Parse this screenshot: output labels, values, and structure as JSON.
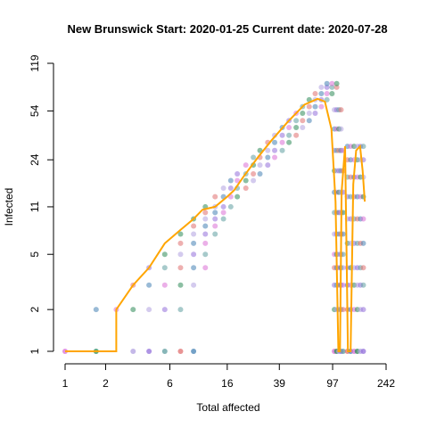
{
  "chart_data": {
    "type": "scatter",
    "title": "New Brunswick Start:  2020-01-25   Current date:  2020-07-28",
    "xlabel": "Total affected",
    "ylabel": "Infected",
    "x_scale": "log",
    "y_scale": "log",
    "xlim": [
      1,
      242
    ],
    "ylim": [
      1,
      119
    ],
    "x_ticks": [
      1,
      2,
      6,
      16,
      39,
      97,
      242
    ],
    "y_ticks": [
      1,
      2,
      5,
      11,
      24,
      54,
      119
    ],
    "grid": false,
    "colors": {
      "median_line": "#FFA500",
      "cloud": [
        "#4682B4",
        "#DA70D6",
        "#2E8B57",
        "#B0A0E0",
        "#9370DB",
        "#5F9EA0",
        "#E07070"
      ]
    },
    "median_line": [
      [
        1,
        1
      ],
      [
        1.7,
        1
      ],
      [
        2.4,
        1
      ],
      [
        2.4,
        2
      ],
      [
        3.2,
        3
      ],
      [
        4.2,
        4
      ],
      [
        5.5,
        6
      ],
      [
        7.2,
        7.5
      ],
      [
        9,
        9
      ],
      [
        10.5,
        10.5
      ],
      [
        13,
        11
      ],
      [
        16,
        13
      ],
      [
        18,
        14.5
      ],
      [
        21,
        18
      ],
      [
        27,
        25
      ],
      [
        34,
        33
      ],
      [
        45,
        45
      ],
      [
        60,
        60
      ],
      [
        75,
        66
      ],
      [
        85,
        63
      ],
      [
        95,
        40
      ],
      [
        102,
        12
      ],
      [
        107,
        1
      ],
      [
        110,
        1
      ],
      [
        113,
        14
      ],
      [
        120,
        30
      ],
      [
        126,
        1
      ],
      [
        132,
        1
      ],
      [
        138,
        16
      ],
      [
        145,
        28
      ],
      [
        155,
        30
      ],
      [
        162,
        20
      ],
      [
        168,
        12
      ]
    ],
    "simulation_cloud": [
      [
        1.7,
        2
      ],
      [
        2.4,
        2
      ],
      [
        3.2,
        2
      ],
      [
        4.2,
        2
      ],
      [
        5.5,
        2
      ],
      [
        7.2,
        2
      ],
      [
        3.2,
        3
      ],
      [
        4.2,
        3
      ],
      [
        5.5,
        3
      ],
      [
        7.2,
        3
      ],
      [
        9,
        3
      ],
      [
        4.2,
        4
      ],
      [
        5.5,
        4
      ],
      [
        7.2,
        4
      ],
      [
        9,
        4
      ],
      [
        11,
        4
      ],
      [
        5.5,
        5
      ],
      [
        7.2,
        5
      ],
      [
        9,
        5
      ],
      [
        11,
        5
      ],
      [
        7.2,
        6
      ],
      [
        9,
        6
      ],
      [
        11,
        6
      ],
      [
        7.2,
        7
      ],
      [
        9,
        7
      ],
      [
        11,
        7
      ],
      [
        13,
        7
      ],
      [
        9,
        8
      ],
      [
        11,
        8
      ],
      [
        13,
        8
      ],
      [
        9,
        9
      ],
      [
        11,
        9
      ],
      [
        13,
        9
      ],
      [
        15,
        9
      ],
      [
        11,
        10
      ],
      [
        13,
        10
      ],
      [
        15,
        10
      ],
      [
        11,
        11
      ],
      [
        13,
        11
      ],
      [
        15,
        11
      ],
      [
        17,
        11
      ],
      [
        13,
        13
      ],
      [
        15,
        13
      ],
      [
        17,
        13
      ],
      [
        19,
        13
      ],
      [
        15,
        15
      ],
      [
        17,
        15
      ],
      [
        19,
        15
      ],
      [
        22,
        15
      ],
      [
        17,
        17
      ],
      [
        19,
        17
      ],
      [
        22,
        17
      ],
      [
        25,
        17
      ],
      [
        19,
        19
      ],
      [
        22,
        19
      ],
      [
        25,
        19
      ],
      [
        28,
        19
      ],
      [
        22,
        22
      ],
      [
        25,
        22
      ],
      [
        28,
        22
      ],
      [
        32,
        22
      ],
      [
        25,
        25
      ],
      [
        28,
        25
      ],
      [
        32,
        25
      ],
      [
        36,
        25
      ],
      [
        28,
        28
      ],
      [
        32,
        28
      ],
      [
        36,
        28
      ],
      [
        41,
        28
      ],
      [
        32,
        32
      ],
      [
        36,
        32
      ],
      [
        41,
        32
      ],
      [
        46,
        32
      ],
      [
        36,
        36
      ],
      [
        41,
        36
      ],
      [
        46,
        36
      ],
      [
        52,
        36
      ],
      [
        41,
        41
      ],
      [
        46,
        41
      ],
      [
        52,
        41
      ],
      [
        58,
        41
      ],
      [
        46,
        46
      ],
      [
        52,
        46
      ],
      [
        58,
        46
      ],
      [
        65,
        46
      ],
      [
        52,
        52
      ],
      [
        58,
        52
      ],
      [
        65,
        52
      ],
      [
        72,
        52
      ],
      [
        58,
        58
      ],
      [
        65,
        58
      ],
      [
        72,
        58
      ],
      [
        80,
        58
      ],
      [
        65,
        65
      ],
      [
        72,
        65
      ],
      [
        80,
        65
      ],
      [
        88,
        65
      ],
      [
        72,
        72
      ],
      [
        80,
        72
      ],
      [
        88,
        72
      ],
      [
        96,
        72
      ],
      [
        80,
        80
      ],
      [
        88,
        80
      ],
      [
        96,
        80
      ],
      [
        104,
        80
      ],
      [
        88,
        85
      ],
      [
        96,
        85
      ],
      [
        104,
        85
      ],
      [
        100,
        55
      ],
      [
        104,
        55
      ],
      [
        108,
        55
      ],
      [
        112,
        55
      ],
      [
        100,
        40
      ],
      [
        104,
        40
      ],
      [
        108,
        40
      ],
      [
        112,
        40
      ],
      [
        100,
        28
      ],
      [
        104,
        28
      ],
      [
        108,
        28
      ],
      [
        112,
        28
      ],
      [
        116,
        28
      ],
      [
        100,
        20
      ],
      [
        104,
        20
      ],
      [
        108,
        20
      ],
      [
        112,
        20
      ],
      [
        116,
        20
      ],
      [
        100,
        14
      ],
      [
        104,
        14
      ],
      [
        108,
        14
      ],
      [
        112,
        14
      ],
      [
        116,
        14
      ],
      [
        100,
        10
      ],
      [
        104,
        10
      ],
      [
        108,
        10
      ],
      [
        112,
        10
      ],
      [
        116,
        10
      ],
      [
        100,
        7
      ],
      [
        104,
        7
      ],
      [
        108,
        7
      ],
      [
        112,
        7
      ],
      [
        116,
        7
      ],
      [
        100,
        5
      ],
      [
        104,
        5
      ],
      [
        108,
        5
      ],
      [
        112,
        5
      ],
      [
        116,
        5
      ],
      [
        100,
        4
      ],
      [
        104,
        4
      ],
      [
        108,
        4
      ],
      [
        112,
        4
      ],
      [
        116,
        4
      ],
      [
        100,
        3
      ],
      [
        104,
        3
      ],
      [
        108,
        3
      ],
      [
        112,
        3
      ],
      [
        116,
        3
      ],
      [
        100,
        2
      ],
      [
        104,
        2
      ],
      [
        108,
        2
      ],
      [
        112,
        2
      ],
      [
        116,
        2
      ],
      [
        125,
        30
      ],
      [
        132,
        30
      ],
      [
        140,
        30
      ],
      [
        148,
        30
      ],
      [
        156,
        30
      ],
      [
        164,
        30
      ],
      [
        125,
        24
      ],
      [
        132,
        24
      ],
      [
        140,
        24
      ],
      [
        148,
        24
      ],
      [
        156,
        24
      ],
      [
        164,
        24
      ],
      [
        125,
        18
      ],
      [
        132,
        18
      ],
      [
        140,
        18
      ],
      [
        148,
        18
      ],
      [
        156,
        18
      ],
      [
        164,
        18
      ],
      [
        125,
        13
      ],
      [
        132,
        13
      ],
      [
        140,
        13
      ],
      [
        148,
        13
      ],
      [
        156,
        13
      ],
      [
        164,
        13
      ],
      [
        125,
        9
      ],
      [
        132,
        9
      ],
      [
        140,
        9
      ],
      [
        148,
        9
      ],
      [
        156,
        9
      ],
      [
        164,
        9
      ],
      [
        125,
        6
      ],
      [
        132,
        6
      ],
      [
        140,
        6
      ],
      [
        148,
        6
      ],
      [
        156,
        6
      ],
      [
        164,
        6
      ],
      [
        125,
        4
      ],
      [
        132,
        4
      ],
      [
        140,
        4
      ],
      [
        148,
        4
      ],
      [
        156,
        4
      ],
      [
        164,
        4
      ],
      [
        125,
        3
      ],
      [
        132,
        3
      ],
      [
        140,
        3
      ],
      [
        148,
        3
      ],
      [
        156,
        3
      ],
      [
        164,
        3
      ],
      [
        125,
        2
      ],
      [
        132,
        2
      ],
      [
        140,
        2
      ],
      [
        148,
        2
      ],
      [
        156,
        2
      ],
      [
        164,
        2
      ]
    ],
    "baseline_points": [
      [
        1,
        1
      ],
      [
        1.7,
        1
      ],
      [
        3.2,
        1
      ],
      [
        4.2,
        1
      ],
      [
        5.5,
        1
      ],
      [
        7.2,
        1
      ],
      [
        9,
        1
      ],
      [
        100,
        1
      ],
      [
        104,
        1
      ],
      [
        108,
        1
      ],
      [
        112,
        1
      ],
      [
        116,
        1
      ],
      [
        125,
        1
      ],
      [
        132,
        1
      ],
      [
        140,
        1
      ],
      [
        148,
        1
      ],
      [
        156,
        1
      ],
      [
        164,
        1
      ]
    ]
  }
}
